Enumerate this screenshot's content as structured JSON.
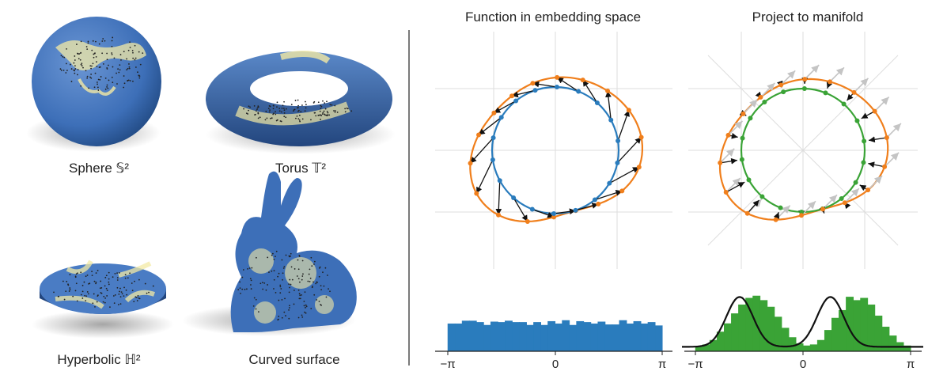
{
  "left": {
    "labels": {
      "sphere": "Sphere 𝕊²",
      "torus": "Torus 𝕋²",
      "hyperbolic": "Hyperbolic ℍ²",
      "curved": "Curved surface"
    }
  },
  "right": {
    "titles": {
      "embedding": "Function in embedding space",
      "project": "Project to manifold"
    },
    "ticks": [
      "−π",
      "0",
      "π"
    ]
  },
  "colors": {
    "surface_blue": "#3d6fb8",
    "density_yellow": "#f3e9a4",
    "orange": "#f07f1c",
    "blue": "#2a7cbd",
    "green": "#3aa336",
    "gray": "#bbbbbb"
  },
  "chart_data": [
    {
      "type": "bar",
      "panel": "uniform-histogram",
      "xlim": [
        "−π",
        "π"
      ],
      "values": [
        0.58,
        0.58,
        0.64,
        0.64,
        0.61,
        0.55,
        0.62,
        0.61,
        0.64,
        0.61,
        0.61,
        0.55,
        0.61,
        0.55,
        0.63,
        0.58,
        0.65,
        0.55,
        0.63,
        0.61,
        0.58,
        0.62,
        0.56,
        0.56,
        0.65,
        0.58,
        0.63,
        0.58,
        0.61,
        0.54
      ],
      "title": "",
      "xlabel": "",
      "ylabel": ""
    },
    {
      "type": "bar",
      "panel": "projected-histogram",
      "xlim": [
        "−π",
        "π"
      ],
      "values": [
        0.08,
        0.12,
        0.2,
        0.35,
        0.5,
        0.68,
        0.84,
        0.96,
        1.0,
        0.92,
        0.8,
        0.62,
        0.42,
        0.25,
        0.14,
        0.1,
        0.12,
        0.2,
        0.38,
        0.6,
        0.74,
        0.98,
        0.92,
        0.96,
        0.84,
        0.64,
        0.44,
        0.28,
        0.16,
        0.1
      ],
      "curve": "density",
      "title": "",
      "xlabel": "",
      "ylabel": ""
    }
  ]
}
